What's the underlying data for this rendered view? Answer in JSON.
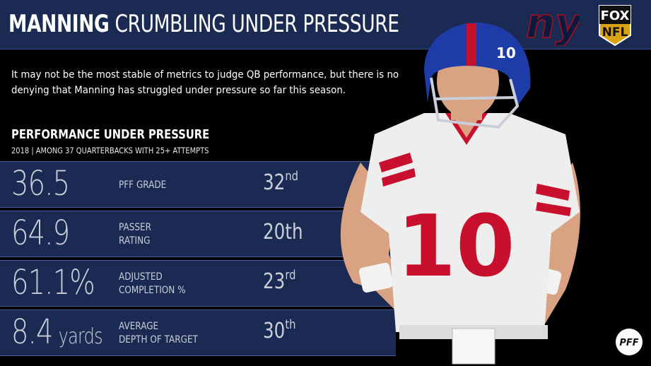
{
  "header": {
    "title_bold": "MANNING",
    "title_rest": "CRUMBLING UNDER PRESSURE",
    "fox_top": "FOX",
    "fox_bottom": "NFL"
  },
  "intro": "It may not be the most stable of metrics to judge QB performance, but there is no denying that Manning has struggled under pressure so far this season.",
  "section": {
    "title": "PERFORMANCE UNDER PRESSURE",
    "caption": "2018 | AMONG 37 QUARTERBACKS WITH 25+ ATTEMPTS"
  },
  "stats": [
    {
      "value": "36.5",
      "unit": "",
      "label": "PFF GRADE",
      "rank_num": "32",
      "rank_suffix": "nd",
      "suffix_sup": true
    },
    {
      "value": "64.9",
      "unit": "",
      "label": "PASSER\nRATING",
      "rank_num": "20",
      "rank_suffix": "th",
      "suffix_sup": false
    },
    {
      "value": "61.1%",
      "unit": "",
      "label": "ADJUSTED\nCOMPLETION %",
      "rank_num": "23",
      "rank_suffix": "rd",
      "suffix_sup": true
    },
    {
      "value": "8.4",
      "unit": "yards",
      "label": "AVERAGE\nDEPTH OF TARGET",
      "rank_num": "30",
      "rank_suffix": "th",
      "suffix_sup": true
    }
  ],
  "player": {
    "jersey_number": "10",
    "helmet_number": "10"
  },
  "colors": {
    "header_bg": "#1b2a52",
    "row_bg": "#1b2a52",
    "giants_red": "#c8102e",
    "text_grey": "#c9ced8"
  }
}
